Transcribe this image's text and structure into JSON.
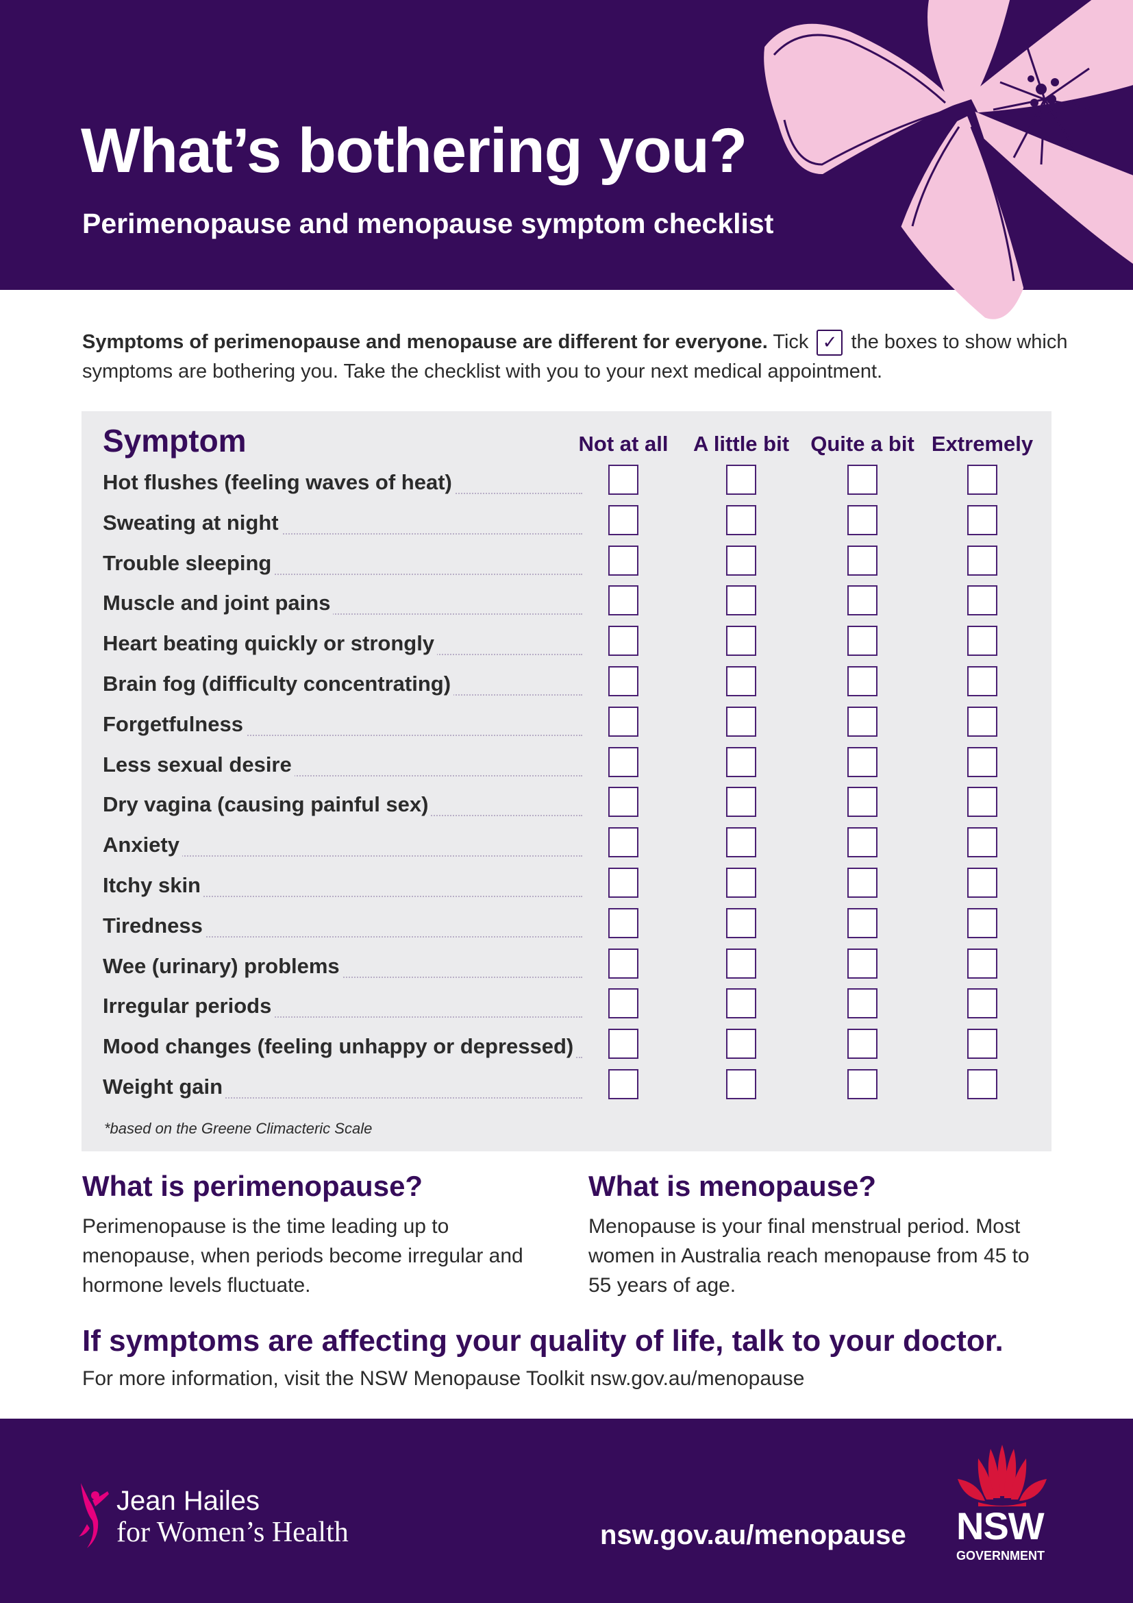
{
  "header": {
    "title": "What’s bothering you?",
    "subtitle": "Perimenopause and menopause symptom checklist"
  },
  "intro": {
    "bold": "Symptoms of perimenopause and menopause are different for everyone.",
    "tick_word": "Tick",
    "rest": "the boxes to show which symptoms are bothering you. Take the checklist with you to your next medical appointment."
  },
  "checklist": {
    "symptom_header": "Symptom",
    "columns": [
      "Not at all",
      "A little bit",
      "Quite a bit",
      "Extremely"
    ],
    "symptoms": [
      "Hot flushes (feeling waves of heat)",
      "Sweating at night",
      "Trouble sleeping",
      "Muscle and joint pains",
      "Heart beating quickly or strongly",
      "Brain fog (difficulty concentrating)",
      "Forgetfulness",
      "Less sexual desire",
      "Dry vagina (causing painful sex)",
      "Anxiety",
      "Itchy skin",
      "Tiredness",
      "Wee (urinary) problems",
      "Irregular periods",
      "Mood changes (feeling unhappy or depressed)",
      "Weight gain"
    ],
    "footnote": "*based on the Greene Climacteric Scale"
  },
  "sections": {
    "perimenopause": {
      "title": "What is perimenopause?",
      "body": "Perimenopause is the time leading up to menopause, when periods become irregular and hormone levels fluctuate."
    },
    "menopause": {
      "title": "What is menopause?",
      "body": "Menopause is your final menstrual period. Most women in Australia reach menopause from 45 to 55 years of age."
    }
  },
  "cta": {
    "headline": "If symptoms are affecting your quality of life, talk to your doctor.",
    "more_info": "For more information, visit the NSW Menopause Toolkit nsw.gov.au/menopause"
  },
  "footer": {
    "jean_hailes_line1": "Jean Hailes",
    "jean_hailes_line2": "for Women’s Health",
    "url": "nsw.gov.au/menopause",
    "nsw_logo": "NSW",
    "nsw_logo_sub": "GOVERNMENT"
  },
  "colors": {
    "brand_purple": "#360c5a",
    "flower_pink": "#f5c4dc",
    "jean_hailes_magenta": "#e6007e",
    "nsw_red": "#d7153a",
    "panel_grey": "#ebebed"
  },
  "icons": {
    "intro_tick": "checkbox-checked-icon",
    "decoration": "flower-illustration",
    "jean_hailes_logo": "dancing-figure-icon",
    "nsw_logo": "waratah-icon"
  }
}
